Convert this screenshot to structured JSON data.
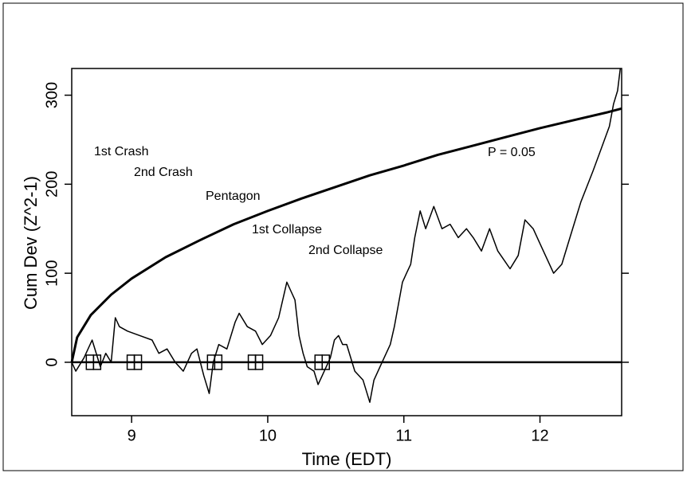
{
  "chart_data": {
    "type": "line",
    "xlabel": "Time (EDT)",
    "ylabel": "Cum Dev (Z^2-1)",
    "xlim": [
      8.56,
      12.6
    ],
    "xticks": [
      9,
      10,
      11,
      12
    ],
    "ylim": [
      -60,
      330
    ],
    "yticks": [
      0,
      100,
      200,
      300
    ],
    "hline": 0,
    "series": [
      {
        "color": "#000000",
        "x": [
          8.56,
          8.59,
          8.65,
          8.71,
          8.77,
          8.81,
          8.85,
          8.88,
          8.91,
          8.97,
          9.06,
          9.15,
          9.2,
          9.26,
          9.32,
          9.38,
          9.44,
          9.48,
          9.53,
          9.57,
          9.6,
          9.64,
          9.7,
          9.76,
          9.79,
          9.85,
          9.91,
          9.96,
          10.02,
          10.08,
          10.14,
          10.17,
          10.2,
          10.23,
          10.26,
          10.29,
          10.34,
          10.37,
          10.4,
          10.46,
          10.49,
          10.52,
          10.55,
          10.58,
          10.64,
          10.7,
          10.75,
          10.78,
          10.84,
          10.9,
          10.93,
          10.99,
          11.02,
          11.05,
          11.08,
          11.12,
          11.16,
          11.22,
          11.28,
          11.34,
          11.4,
          11.46,
          11.51,
          11.57,
          11.63,
          11.69,
          11.78,
          11.84,
          11.89,
          11.95,
          12.01,
          12.07,
          12.1,
          12.16,
          12.22,
          12.3,
          12.39,
          12.45,
          12.51,
          12.54,
          12.57,
          12.59
        ],
        "values": [
          0,
          -10,
          5,
          25,
          -5,
          10,
          0,
          50,
          40,
          35,
          30,
          25,
          10,
          15,
          0,
          -10,
          10,
          15,
          -15,
          -35,
          0,
          20,
          15,
          45,
          55,
          40,
          35,
          20,
          30,
          50,
          90,
          80,
          70,
          30,
          10,
          -5,
          -10,
          -25,
          -15,
          5,
          25,
          30,
          20,
          20,
          -10,
          -20,
          -45,
          -20,
          0,
          20,
          40,
          90,
          100,
          110,
          140,
          170,
          150,
          175,
          150,
          155,
          140,
          150,
          140,
          125,
          150,
          125,
          105,
          120,
          160,
          150,
          130,
          110,
          100,
          110,
          140,
          180,
          215,
          240,
          265,
          290,
          305,
          330
        ]
      },
      {
        "name": "P = 0.05",
        "color": "#000000",
        "x": [
          8.56,
          8.6,
          8.7,
          8.85,
          9.0,
          9.25,
          9.5,
          9.75,
          10.0,
          10.25,
          10.5,
          10.75,
          11.0,
          11.25,
          11.5,
          11.75,
          12.0,
          12.25,
          12.5,
          12.6
        ],
        "values": [
          0,
          28,
          53,
          76,
          94,
          118,
          137,
          155,
          170,
          184,
          197,
          210,
          221,
          233,
          243,
          253,
          263,
          272,
          281,
          285
        ]
      }
    ],
    "markers": {
      "x": [
        8.72,
        9.02,
        9.61,
        9.91,
        10.4
      ],
      "values": [
        0,
        0,
        0,
        0,
        0
      ]
    },
    "events": [
      "1st Crash",
      "2nd Crash",
      "Pentagon",
      "1st Collapse",
      "2nd Collapse"
    ]
  }
}
